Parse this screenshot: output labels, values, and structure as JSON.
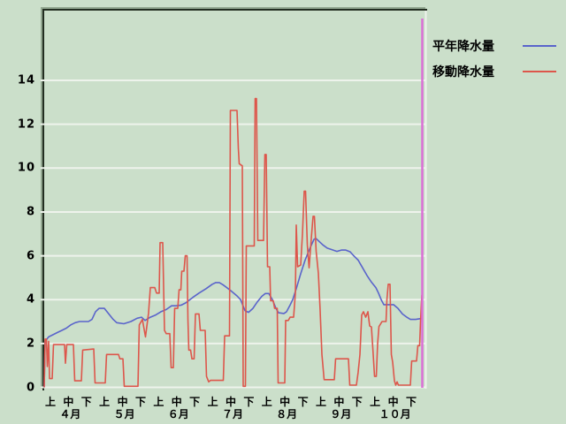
{
  "chart": {
    "legend": [
      {
        "label": "平年降水量"
      },
      {
        "label": "移動降水量"
      }
    ],
    "colors": {
      "background": "#cbdfca",
      "grid": "#eef3ec",
      "frame_dark": "#232e21",
      "frame_light": "#93a891",
      "normal_line": "#5a64cb",
      "moving_line": "#dd564b",
      "end_marker": "#da70d6",
      "text": "#000000"
    }
  },
  "chart_data": {
    "type": "line",
    "title": "",
    "xlabel": "",
    "ylabel": "",
    "grid": true,
    "legend_position": "top-right",
    "x_unit": "days since April 1 (daily timeline, April-October)",
    "ylim": [
      0,
      17.2
    ],
    "yticks": [
      0,
      2,
      4,
      6,
      8,
      10,
      12,
      14
    ],
    "x_axis": {
      "period_labels": [
        "上",
        "中",
        "下"
      ],
      "months": [
        "４月",
        "５月",
        "６月",
        "７月",
        "８月",
        "９月",
        "１０月"
      ]
    },
    "end_marker_x": 213.5,
    "series": [
      {
        "name": "平年降水量",
        "color": "#5a64cb",
        "points": [
          [
            0,
            0
          ],
          [
            0.5,
            2.1
          ],
          [
            2.5,
            2.3
          ],
          [
            5,
            2.4
          ],
          [
            7.5,
            2.5
          ],
          [
            10,
            2.6
          ],
          [
            12.5,
            2.7
          ],
          [
            15,
            2.85
          ],
          [
            17.5,
            2.95
          ],
          [
            20,
            3.0
          ],
          [
            25,
            3.0
          ],
          [
            27,
            3.1
          ],
          [
            29,
            3.45
          ],
          [
            31,
            3.6
          ],
          [
            34,
            3.6
          ],
          [
            36.5,
            3.35
          ],
          [
            39,
            3.1
          ],
          [
            41,
            2.95
          ],
          [
            45,
            2.9
          ],
          [
            49,
            3.0
          ],
          [
            52.5,
            3.15
          ],
          [
            55,
            3.2
          ],
          [
            57,
            3.05
          ],
          [
            60,
            3.2
          ],
          [
            63,
            3.3
          ],
          [
            66,
            3.45
          ],
          [
            69,
            3.55
          ],
          [
            72,
            3.72
          ],
          [
            74.5,
            3.72
          ],
          [
            77.5,
            3.75
          ],
          [
            80,
            3.85
          ],
          [
            84,
            4.1
          ],
          [
            87.5,
            4.3
          ],
          [
            91.5,
            4.5
          ],
          [
            95,
            4.7
          ],
          [
            97,
            4.78
          ],
          [
            99,
            4.78
          ],
          [
            101,
            4.68
          ],
          [
            105,
            4.44
          ],
          [
            109,
            4.17
          ],
          [
            111,
            4.0
          ],
          [
            113.5,
            3.5
          ],
          [
            115.5,
            3.42
          ],
          [
            118,
            3.6
          ],
          [
            120.5,
            3.9
          ],
          [
            123,
            4.15
          ],
          [
            125,
            4.28
          ],
          [
            127,
            4.28
          ],
          [
            129,
            4.0
          ],
          [
            131,
            3.6
          ],
          [
            132.5,
            3.4
          ],
          [
            135.5,
            3.37
          ],
          [
            137,
            3.45
          ],
          [
            139,
            3.75
          ],
          [
            140.5,
            4.0
          ],
          [
            142.5,
            4.5
          ],
          [
            145,
            5.18
          ],
          [
            147.5,
            5.8
          ],
          [
            150,
            6.3
          ],
          [
            152.5,
            6.75
          ],
          [
            153.5,
            6.8
          ],
          [
            155.5,
            6.65
          ],
          [
            157.5,
            6.5
          ],
          [
            160,
            6.35
          ],
          [
            163,
            6.27
          ],
          [
            165.5,
            6.2
          ],
          [
            168,
            6.26
          ],
          [
            170.5,
            6.26
          ],
          [
            173,
            6.18
          ],
          [
            175,
            6.0
          ],
          [
            177.5,
            5.8
          ],
          [
            180,
            5.45
          ],
          [
            182.5,
            5.1
          ],
          [
            185,
            4.8
          ],
          [
            187.5,
            4.55
          ],
          [
            189,
            4.3
          ],
          [
            190.5,
            4.0
          ],
          [
            192,
            3.77
          ],
          [
            197.5,
            3.77
          ],
          [
            200,
            3.6
          ],
          [
            202.5,
            3.35
          ],
          [
            205,
            3.2
          ],
          [
            207,
            3.1
          ],
          [
            210,
            3.1
          ],
          [
            214,
            3.15
          ]
        ]
      },
      {
        "name": "移動降水量",
        "color": "#dd564b",
        "points": [
          [
            0,
            0
          ],
          [
            0.5,
            2.2
          ],
          [
            1.25,
            2.2
          ],
          [
            1.75,
            0.95
          ],
          [
            2.5,
            2.1
          ],
          [
            3,
            0.4
          ],
          [
            4.5,
            0.4
          ],
          [
            5.25,
            1.95
          ],
          [
            11.5,
            1.95
          ],
          [
            12,
            1.1
          ],
          [
            12.75,
            1.95
          ],
          [
            16.5,
            1.95
          ],
          [
            17.25,
            0.3
          ],
          [
            21,
            0.3
          ],
          [
            21.75,
            1.7
          ],
          [
            28,
            1.75
          ],
          [
            28.75,
            0.2
          ],
          [
            34.5,
            0.2
          ],
          [
            35.25,
            1.5
          ],
          [
            42,
            1.5
          ],
          [
            42.75,
            1.3
          ],
          [
            44.5,
            1.3
          ],
          [
            45.25,
            0.05
          ],
          [
            53,
            0.05
          ],
          [
            53.75,
            2.85
          ],
          [
            55.5,
            3.1
          ],
          [
            57.25,
            2.3
          ],
          [
            59,
            3.4
          ],
          [
            60,
            4.55
          ],
          [
            62.5,
            4.55
          ],
          [
            63.5,
            4.3
          ],
          [
            65,
            4.3
          ],
          [
            65.5,
            6.6
          ],
          [
            67,
            6.6
          ],
          [
            68,
            2.6
          ],
          [
            69,
            2.45
          ],
          [
            71,
            2.45
          ],
          [
            71.75,
            0.9
          ],
          [
            73,
            0.9
          ],
          [
            73.75,
            3.6
          ],
          [
            75.5,
            3.6
          ],
          [
            76.25,
            4.45
          ],
          [
            77.25,
            4.45
          ],
          [
            77.75,
            5.3
          ],
          [
            79,
            5.3
          ],
          [
            79.75,
            6.0
          ],
          [
            80.75,
            6.0
          ],
          [
            81.25,
            3.1
          ],
          [
            81.75,
            1.7
          ],
          [
            82.75,
            1.7
          ],
          [
            83.5,
            1.3
          ],
          [
            84.75,
            1.3
          ],
          [
            85.5,
            3.35
          ],
          [
            87.5,
            3.35
          ],
          [
            88.25,
            2.6
          ],
          [
            91,
            2.6
          ],
          [
            91.75,
            0.5
          ],
          [
            93,
            0.25
          ],
          [
            94,
            0.32
          ],
          [
            101.25,
            0.32
          ],
          [
            102,
            2.35
          ],
          [
            104.75,
            2.35
          ],
          [
            105.25,
            12.63
          ],
          [
            109,
            12.63
          ],
          [
            109.75,
            10.9
          ],
          [
            110.25,
            10.2
          ],
          [
            112,
            10.1
          ],
          [
            112.5,
            0.05
          ],
          [
            113.75,
            0.05
          ],
          [
            114.25,
            6.45
          ],
          [
            118.75,
            6.45
          ],
          [
            119.25,
            13.17
          ],
          [
            120,
            13.17
          ],
          [
            120.75,
            6.7
          ],
          [
            124,
            6.7
          ],
          [
            124.75,
            10.62
          ],
          [
            125.5,
            10.62
          ],
          [
            126.25,
            5.5
          ],
          [
            127.5,
            5.5
          ],
          [
            128,
            3.95
          ],
          [
            129.5,
            3.95
          ],
          [
            130.25,
            3.6
          ],
          [
            131.75,
            3.6
          ],
          [
            132.25,
            0.2
          ],
          [
            136,
            0.2
          ],
          [
            136.5,
            3.05
          ],
          [
            138,
            3.05
          ],
          [
            139,
            3.2
          ],
          [
            141,
            3.2
          ],
          [
            142,
            4.3
          ],
          [
            142.5,
            7.4
          ],
          [
            143.25,
            5.5
          ],
          [
            145,
            5.58
          ],
          [
            146,
            7.0
          ],
          [
            147,
            8.95
          ],
          [
            147.75,
            8.95
          ],
          [
            148.75,
            6.5
          ],
          [
            149.75,
            5.45
          ],
          [
            151,
            6.8
          ],
          [
            152,
            7.8
          ],
          [
            152.75,
            7.8
          ],
          [
            153.75,
            6.2
          ],
          [
            155,
            5.2
          ],
          [
            156,
            3.5
          ],
          [
            157,
            1.5
          ],
          [
            158.25,
            0.35
          ],
          [
            164,
            0.35
          ],
          [
            164.75,
            1.3
          ],
          [
            172,
            1.3
          ],
          [
            172.75,
            0.1
          ],
          [
            176.5,
            0.1
          ],
          [
            177.5,
            0.7
          ],
          [
            178.5,
            1.5
          ],
          [
            179.5,
            3.3
          ],
          [
            180.5,
            3.45
          ],
          [
            181.75,
            3.2
          ],
          [
            183,
            3.45
          ],
          [
            184,
            2.8
          ],
          [
            185,
            2.75
          ],
          [
            186,
            1.5
          ],
          [
            186.75,
            0.5
          ],
          [
            187.75,
            0.5
          ],
          [
            188.5,
            2.0
          ],
          [
            189.25,
            2.77
          ],
          [
            191,
            3.0
          ],
          [
            193.25,
            3.0
          ],
          [
            193.75,
            4.0
          ],
          [
            194.5,
            4.7
          ],
          [
            195.5,
            4.7
          ],
          [
            196.25,
            1.5
          ],
          [
            197,
            1.15
          ],
          [
            198,
            0.3
          ],
          [
            198.75,
            0.1
          ],
          [
            199.5,
            0.25
          ],
          [
            200.25,
            0.1
          ],
          [
            207,
            0.1
          ],
          [
            207.75,
            1.2
          ],
          [
            210.5,
            1.2
          ],
          [
            211.25,
            1.9
          ],
          [
            212.25,
            1.9
          ],
          [
            212.75,
            3.0
          ],
          [
            213.5,
            4.2
          ],
          [
            214,
            4.2
          ]
        ]
      }
    ]
  }
}
